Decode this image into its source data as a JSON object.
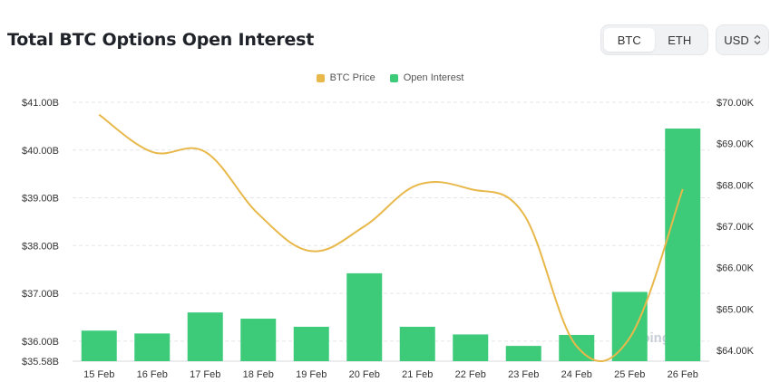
{
  "header": {
    "title": "Total BTC Options Open Interest",
    "asset_tabs": [
      {
        "label": "BTC",
        "active": true
      },
      {
        "label": "ETH",
        "active": false
      }
    ],
    "currency": "USD"
  },
  "watermark": "coinglass",
  "colors": {
    "price_line": "#e8b84a",
    "bars": "#3dcb7a",
    "grid": "#e3e5e8"
  },
  "chart_data": {
    "type": "bar",
    "categories": [
      "15 Feb",
      "16 Feb",
      "17 Feb",
      "18 Feb",
      "19 Feb",
      "20 Feb",
      "21 Feb",
      "22 Feb",
      "23 Feb",
      "24 Feb",
      "25 Feb",
      "26 Feb"
    ],
    "series": [
      {
        "name": "Open Interest",
        "type": "bar",
        "axis": "left",
        "color": "#3dcb7a",
        "values": [
          36.22,
          36.16,
          36.6,
          36.47,
          36.3,
          37.42,
          36.3,
          36.14,
          35.9,
          36.13,
          37.03,
          40.45
        ]
      },
      {
        "name": "BTC Price",
        "type": "line",
        "axis": "right",
        "color": "#e8b84a",
        "values": [
          69700,
          68800,
          68800,
          67300,
          66400,
          67000,
          68000,
          67900,
          67300,
          64100,
          64300,
          67900
        ]
      }
    ],
    "y_left": {
      "min": 35.58,
      "max": 41.0,
      "ticks": [
        "$41.00B",
        "$40.00B",
        "$39.00B",
        "$38.00B",
        "$37.00B",
        "$36.00B",
        "$35.58B"
      ],
      "tick_values": [
        41,
        40,
        39,
        38,
        37,
        36,
        35.58
      ]
    },
    "y_right": {
      "min": 63700,
      "max": 70000,
      "ticks": [
        "$70.00K",
        "$69.00K",
        "$68.00K",
        "$67.00K",
        "$66.00K",
        "$65.00K",
        "$64.00K"
      ],
      "tick_values": [
        70000,
        69000,
        68000,
        67000,
        66000,
        65000,
        64000
      ]
    },
    "legend": [
      "BTC Price",
      "Open Interest"
    ],
    "legend_position": "top-center",
    "grid": "horizontal-dashed"
  }
}
